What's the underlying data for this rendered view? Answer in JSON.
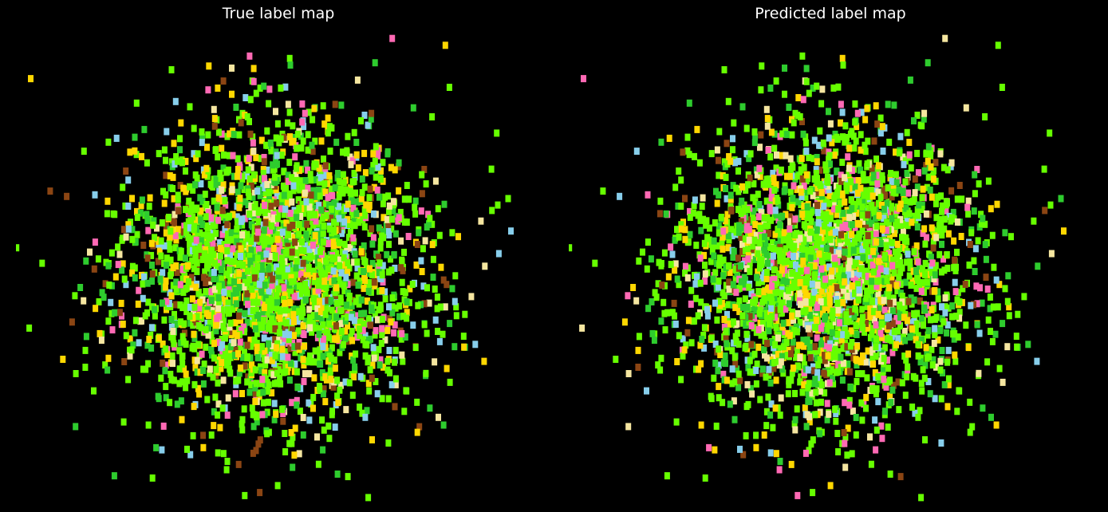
{
  "colors": {
    "background": "#000000",
    "title_text": "#ffffff"
  },
  "chart_data": [
    {
      "type": "scatter",
      "title": "True label map",
      "xlabel": "",
      "ylabel": "",
      "axes_visible": false,
      "grid": false,
      "legend": "none",
      "marker": "square",
      "xlim": [
        -3.2,
        3.2
      ],
      "ylim": [
        -3.0,
        3.0
      ],
      "generation": {
        "distribution": "gaussian-2d",
        "point_count": 3000,
        "spread_x": 0.95,
        "spread_y": 0.95,
        "seed": 11
      },
      "classes": [
        {
          "id": 0,
          "color": "#66ff00",
          "weight": 0.44
        },
        {
          "id": 1,
          "color": "#2ecc2e",
          "weight": 0.16
        },
        {
          "id": 2,
          "color": "#ffd700",
          "weight": 0.14
        },
        {
          "id": 3,
          "color": "#ff69b4",
          "weight": 0.07
        },
        {
          "id": 4,
          "color": "#87ceeb",
          "weight": 0.07
        },
        {
          "id": 5,
          "color": "#f5e6a0",
          "weight": 0.06
        },
        {
          "id": 6,
          "color": "#8b4513",
          "weight": 0.06
        }
      ]
    },
    {
      "type": "scatter",
      "title": "Predicted label map",
      "xlabel": "",
      "ylabel": "",
      "axes_visible": false,
      "grid": false,
      "legend": "none",
      "marker": "square",
      "xlim": [
        -3.2,
        3.2
      ],
      "ylim": [
        -3.0,
        3.0
      ],
      "generation": {
        "distribution": "gaussian-2d",
        "point_count": 3000,
        "spread_x": 0.95,
        "spread_y": 0.95,
        "seed": 11
      },
      "classes": [
        {
          "id": 0,
          "color": "#66ff00",
          "weight": 0.44
        },
        {
          "id": 1,
          "color": "#2ecc2e",
          "weight": 0.16
        },
        {
          "id": 2,
          "color": "#ffd700",
          "weight": 0.14
        },
        {
          "id": 3,
          "color": "#ff69b4",
          "weight": 0.07
        },
        {
          "id": 4,
          "color": "#87ceeb",
          "weight": 0.07
        },
        {
          "id": 5,
          "color": "#f5e6a0",
          "weight": 0.06
        },
        {
          "id": 6,
          "color": "#8b4513",
          "weight": 0.06
        }
      ]
    }
  ]
}
